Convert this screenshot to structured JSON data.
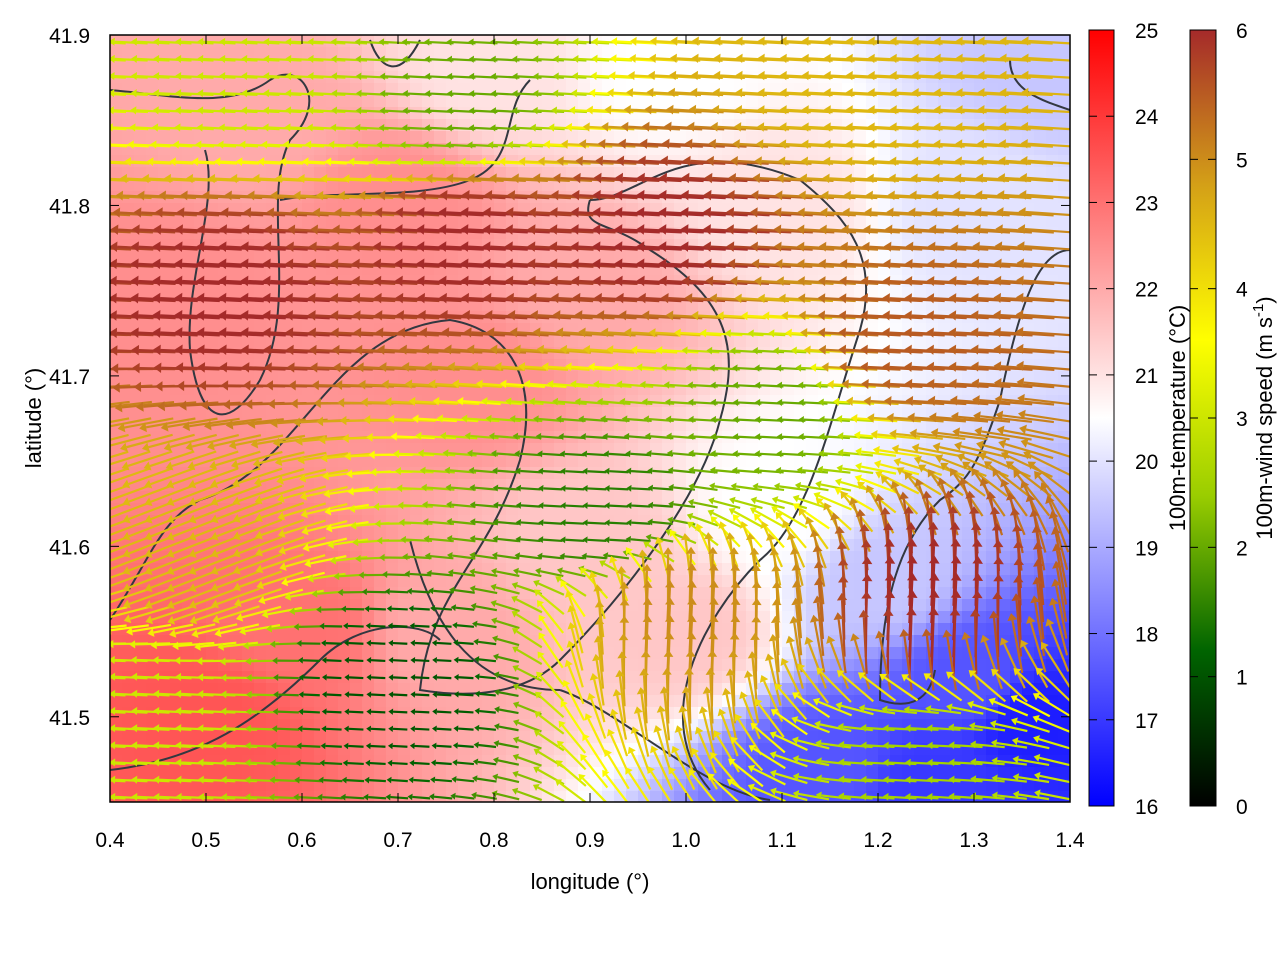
{
  "chart_data": {
    "type": "heatmap",
    "xlabel": "longitude (°)",
    "ylabel": "latitude (°)",
    "xlim": [
      0.4,
      1.4
    ],
    "ylim": [
      41.45,
      41.9
    ],
    "xticks": [
      0.4,
      0.5,
      0.6,
      0.7,
      0.8,
      0.9,
      1.0,
      1.1,
      1.2,
      1.3,
      1.4
    ],
    "xtick_labels": [
      "0.4",
      "0.5",
      "0.6",
      "0.7",
      "0.8",
      "0.9",
      "1.0",
      "1.1",
      "1.2",
      "1.3",
      "1.4"
    ],
    "yticks": [
      41.5,
      41.6,
      41.7,
      41.8,
      41.9
    ],
    "ytick_labels": [
      "41.5",
      "41.6",
      "41.7",
      "41.8",
      "41.9"
    ],
    "grid": false,
    "temperature_colorbar": {
      "label": "100m-temperature (°C)",
      "range": [
        16,
        25
      ],
      "ticks": [
        16,
        17,
        18,
        19,
        20,
        21,
        22,
        23,
        24,
        25
      ],
      "tick_labels": [
        "16",
        "17",
        "18",
        "19",
        "20",
        "21",
        "22",
        "23",
        "24",
        "25"
      ],
      "colors": [
        "#0000ff",
        "#ffffff",
        "#ff0000"
      ]
    },
    "wind_colorbar": {
      "label": "100m-wind speed (m s",
      "label_sup": "-1",
      "label_end": ")",
      "range": [
        0,
        6
      ],
      "ticks": [
        0,
        1,
        2,
        3,
        4,
        5,
        6
      ],
      "tick_labels": [
        "0",
        "1",
        "2",
        "3",
        "4",
        "5",
        "6"
      ],
      "colors": [
        "#000000",
        "#006400",
        "#9acd00",
        "#ffff00",
        "#d4a017",
        "#a52a2a"
      ]
    },
    "temperature_field": {
      "description_levels_degC": [
        {
          "lon": 0.45,
          "lat": 41.75,
          "t": 22.5
        },
        {
          "lon": 0.55,
          "lat": 41.85,
          "t": 22.0
        },
        {
          "lon": 0.7,
          "lat": 41.8,
          "t": 22.5
        },
        {
          "lon": 0.9,
          "lat": 41.75,
          "t": 22.0
        },
        {
          "lon": 1.1,
          "lat": 41.8,
          "t": 21.0
        },
        {
          "lon": 1.3,
          "lat": 41.8,
          "t": 20.0
        },
        {
          "lon": 1.38,
          "lat": 41.88,
          "t": 19.5
        },
        {
          "lon": 0.5,
          "lat": 41.5,
          "t": 23.5
        },
        {
          "lon": 0.6,
          "lat": 41.55,
          "t": 23.0
        },
        {
          "lon": 0.75,
          "lat": 41.55,
          "t": 22.0
        },
        {
          "lon": 0.9,
          "lat": 41.6,
          "t": 21.5
        },
        {
          "lon": 1.0,
          "lat": 41.55,
          "t": 21.5
        },
        {
          "lon": 1.1,
          "lat": 41.62,
          "t": 20.5
        },
        {
          "lon": 1.2,
          "lat": 41.58,
          "t": 19.5
        },
        {
          "lon": 1.3,
          "lat": 41.52,
          "t": 17.5
        },
        {
          "lon": 1.36,
          "lat": 41.5,
          "t": 16.5
        },
        {
          "lon": 1.15,
          "lat": 41.47,
          "t": 17.5
        },
        {
          "lon": 1.25,
          "lat": 41.46,
          "t": 17.0
        },
        {
          "lon": 0.78,
          "lat": 41.7,
          "t": 22.5
        },
        {
          "lon": 0.8,
          "lat": 41.88,
          "t": 21.0
        },
        {
          "lon": 0.98,
          "lat": 41.88,
          "t": 20.5
        }
      ]
    },
    "wind_regions": [
      {
        "lon": 0.55,
        "lat": 41.75,
        "speed": 6,
        "dir": "west"
      },
      {
        "lon": 0.8,
        "lat": 41.78,
        "speed": 6,
        "dir": "west"
      },
      {
        "lon": 1.0,
        "lat": 41.78,
        "speed": 6,
        "dir": "west"
      },
      {
        "lon": 0.5,
        "lat": 41.6,
        "speed": 4.5,
        "dir": "southwest"
      },
      {
        "lon": 0.55,
        "lat": 41.88,
        "speed": 3,
        "dir": "west"
      },
      {
        "lon": 0.78,
        "lat": 41.86,
        "speed": 2,
        "dir": "west"
      },
      {
        "lon": 1.2,
        "lat": 41.87,
        "speed": 4.5,
        "dir": "west"
      },
      {
        "lon": 1.25,
        "lat": 41.72,
        "speed": 5.5,
        "dir": "west"
      },
      {
        "lon": 0.7,
        "lat": 41.52,
        "speed": 1,
        "dir": "west"
      },
      {
        "lon": 0.92,
        "lat": 41.62,
        "speed": 1.5,
        "dir": "west"
      },
      {
        "lon": 1.1,
        "lat": 41.68,
        "speed": 2,
        "dir": "west"
      },
      {
        "lon": 1.0,
        "lat": 41.55,
        "speed": 5,
        "dir": "north"
      },
      {
        "lon": 1.25,
        "lat": 41.55,
        "speed": 6,
        "dir": "north"
      },
      {
        "lon": 1.25,
        "lat": 41.48,
        "speed": 2.5,
        "dir": "west"
      },
      {
        "lon": 0.45,
        "lat": 41.5,
        "speed": 3,
        "dir": "west"
      }
    ]
  }
}
